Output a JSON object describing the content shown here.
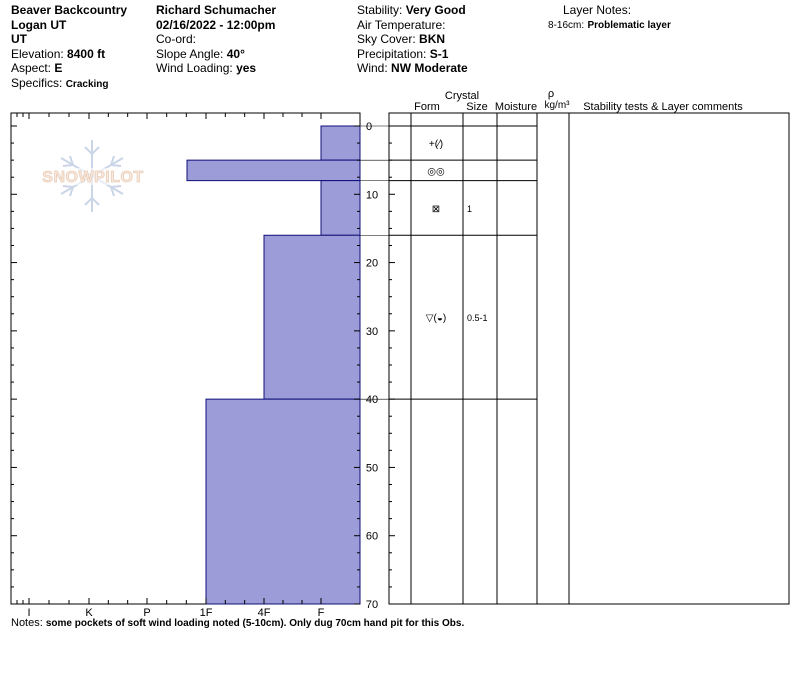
{
  "header": {
    "location": "Beaver Backcountry",
    "area": "Logan UT",
    "state": "UT",
    "elevation_label": "Elevation:",
    "elevation": "8400 ft",
    "aspect_label": "Aspect:",
    "aspect": "E",
    "specifics_label": "Specifics:",
    "specifics": "Cracking",
    "observer": "Richard Schumacher",
    "datetime": "02/16/2022 - 12:00pm",
    "coord_label": "Co-ord:",
    "slope_label": "Slope Angle:",
    "slope": "40°",
    "wind_loading_label": "Wind Loading:",
    "wind_loading": "yes",
    "stability_label": "Stability:",
    "stability": "Very Good",
    "air_temp_label": "Air Temperature:",
    "sky_label": "Sky Cover:",
    "sky": "BKN",
    "precip_label": "Precipitation:",
    "precip": "S-1",
    "wind_label": "Wind:",
    "wind": "NW Moderate",
    "layer_notes_label": "Layer Notes:",
    "layer_note_range": "8-16cm:",
    "layer_note_text": "Problematic layer"
  },
  "watermark": {
    "text": "SNOWPILOT"
  },
  "table": {
    "crystal_label": "Crystal",
    "form_label": "Form",
    "size_label": "Size",
    "moisture_label": "Moisture",
    "rho_label": "ρ",
    "density_unit": "kg/m³",
    "comments_label": "Stability tests & Layer comments"
  },
  "notes": {
    "label": "Notes:",
    "text": "some pockets of soft wind loading noted (5-10cm). Only dug 70cm hand pit for this Obs."
  },
  "chart_data": {
    "type": "bar",
    "orientation": "horizontal",
    "description_axis": "hand hardness profile vs depth",
    "hardness_categories": [
      "I",
      "K",
      "P",
      "1F",
      "4F",
      "F"
    ],
    "depth_ticks": [
      0,
      10,
      20,
      30,
      40,
      50,
      60,
      70
    ],
    "depth_range": [
      0,
      70
    ],
    "layers": [
      {
        "top": 0,
        "bottom": 5,
        "hardness": "F",
        "form": "+(⁄)",
        "size": ""
      },
      {
        "top": 5,
        "bottom": 8,
        "hardness": "~1F",
        "form": "◎◎",
        "size": ""
      },
      {
        "top": 8,
        "bottom": 16,
        "hardness": "F",
        "form": "⊠",
        "size": "1"
      },
      {
        "top": 16,
        "bottom": 40,
        "hardness": "4F",
        "form": "▽(◒)",
        "size": "0.5-1"
      },
      {
        "top": 40,
        "bottom": 70,
        "hardness": "1F",
        "form": "",
        "size": ""
      }
    ],
    "bar_color": "#9c9cd8",
    "bar_stroke": "#0f0f7a"
  }
}
